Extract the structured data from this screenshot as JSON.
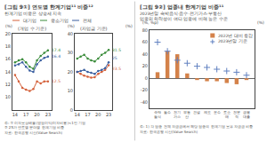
{
  "chart_data": [
    {
      "type": "line",
      "heading": "[그림 9①] 연도별 한계기업¹¹ 비중¹²",
      "subheading": "한계기업 비중은 상승세 지속",
      "title": "(개업 수 기준)",
      "y_label": "(%)",
      "x": [
        14,
        15,
        16,
        17,
        18,
        19,
        20,
        21,
        22,
        23
      ],
      "xlim": [
        13.3,
        24.0
      ],
      "xticks": [
        14,
        17,
        20,
        23
      ],
      "ylim": [
        8,
        20
      ],
      "yticks": [
        10,
        12,
        14,
        16,
        18,
        20
      ],
      "grid": false,
      "legend": "top",
      "marker": "circle",
      "series": [
        {
          "name": "대기업",
          "color": "#d4603a",
          "values": [
            13.5,
            12.5,
            11.5,
            11.2,
            11.0,
            11.3,
            12.5,
            12.2,
            12.5,
            12.5
          ]
        },
        {
          "name": "중소기업",
          "color": "#3a8c3a",
          "values": [
            15.5,
            15.8,
            16.0,
            15.5,
            14.8,
            14.5,
            15.8,
            16.5,
            17.0,
            17.4
          ]
        },
        {
          "name": "전체",
          "color": "#3a5fa0",
          "values": [
            15.0,
            15.2,
            15.5,
            14.8,
            14.2,
            14.0,
            15.2,
            15.8,
            16.2,
            16.4
          ]
        }
      ],
      "annotations": [
        {
          "text": "17.4",
          "x": 23,
          "y": 17.4,
          "color": "#3a8c3a"
        },
        {
          "text": "16.4",
          "x": 23,
          "y": 16.4,
          "color": "#3a5fa0"
        },
        {
          "text": "12.5",
          "x": 23,
          "y": 12.5,
          "color": "#d4603a"
        }
      ],
      "notes": [
        "주: ① 이자보상배율(영업이익/이자비용)<1인 기업  ② 25가 연도별 분야별 한계기업 비중",
        "자료: 한국은행 시산(Value Search)"
      ]
    },
    {
      "type": "line",
      "title": "(자업금 기준)",
      "y_label": "(%)",
      "y2_label": "(%)",
      "x": [
        14,
        15,
        16,
        17,
        18,
        19,
        20,
        21,
        22,
        23
      ],
      "xlim": [
        13.3,
        24.0
      ],
      "xticks": [
        14,
        17,
        20,
        23
      ],
      "ylim": [
        0,
        40
      ],
      "yticks": [
        0,
        10,
        20,
        30,
        40
      ],
      "y2lim": [
        0,
        40
      ],
      "y2ticks": [
        0,
        10,
        20,
        30,
        40
      ],
      "grid": false,
      "marker": "circle",
      "series": [
        {
          "name": "대기업",
          "color": "#d4603a",
          "values": [
            20.0,
            19.0,
            18.0,
            17.5,
            17.0,
            17.2,
            19.0,
            20.0,
            21.0,
            23.5
          ]
        },
        {
          "name": "중소기업",
          "color": "#3a8c3a",
          "values": [
            27.0,
            28.0,
            29.0,
            27.0,
            26.0,
            25.5,
            27.0,
            29.0,
            30.0,
            31.5
          ]
        },
        {
          "name": "전체",
          "color": "#3a5fa0",
          "values": [
            20.0,
            20.5,
            21.0,
            20.0,
            19.5,
            19.0,
            20.5,
            21.0,
            22.0,
            25.0
          ]
        }
      ],
      "annotations": [
        {
          "text": "31.5",
          "x": 23,
          "y": 31.5,
          "color": "#3a8c3a"
        },
        {
          "text": "25",
          "x": 23,
          "y": 25,
          "color": "#3a5fa0"
        },
        {
          "text": "23.5",
          "x": 23,
          "y": 23.5,
          "color": "#d4603a"
        }
      ]
    },
    {
      "type": "bar",
      "heading": "[그림 9②] 업종내 한계기업 비중¹¹",
      "subheading": "2023년말 숙박음식·음수·전기가스·부동산\n업종의 하락성이 여타 업종에 비해 높은 수준",
      "y_label": "(%, %p)",
      "y2_label": "(%)",
      "categories": [
        "숙박\n음식",
        "음수",
        "전기\n가스",
        "부동\n산",
        "건설",
        "제조",
        "운수",
        "도소\n매",
        "전문\n직",
        "금융\n대출"
      ],
      "ylim": [
        -50,
        80
      ],
      "yticks": [
        -40,
        -20,
        0,
        20,
        40,
        60,
        80
      ],
      "y2lim": [
        -50,
        80
      ],
      "y2ticks": [
        -40,
        -20,
        0,
        20,
        40,
        60,
        80
      ],
      "grid": false,
      "legend": "upper right",
      "series": [
        {
          "name": "2022년 대비 증감",
          "type": "bar",
          "color": "#d4824a",
          "values": [
            10,
            45,
            40,
            8,
            -3,
            -5,
            -5,
            -8,
            -10,
            -3
          ]
        },
        {
          "name": "2023년말 기준",
          "type": "scatter",
          "marker": "cross",
          "color": "#6080c0",
          "values": [
            60,
            45,
            30,
            25,
            20,
            18,
            15,
            12,
            10,
            5
          ]
        }
      ],
      "notes": [
        "주: 1) 각 업종 전체 자금금에서 해당 업종의 한계기업 보유 자금금 비중",
        "자료: 한국은행 시산(Value Search)"
      ]
    }
  ]
}
